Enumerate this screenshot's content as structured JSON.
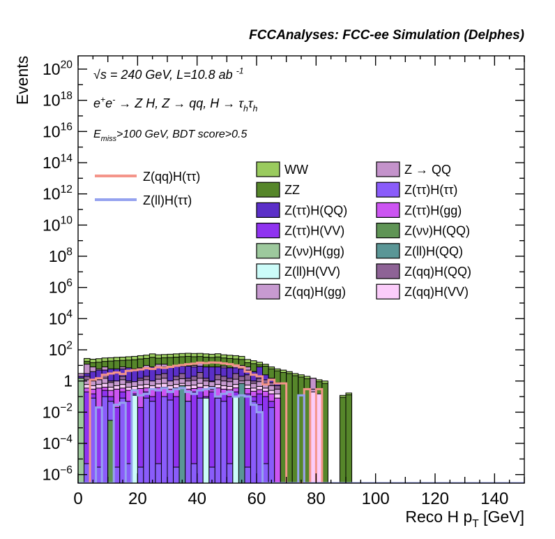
{
  "header": {
    "title": "FCCAnalyses: FCC-ee Simulation (Delphes)"
  },
  "annotations": [
    {
      "id": "annotation-energy-lumi",
      "segments": [
        {
          "t": "√s = 240 GeV, L=10.8 ab ",
          "k": "n"
        },
        {
          "t": "-1",
          "k": "sup"
        }
      ]
    },
    {
      "id": "annotation-process",
      "segments": [
        {
          "t": "e",
          "k": "n"
        },
        {
          "t": "+",
          "k": "sup"
        },
        {
          "t": "e",
          "k": "n"
        },
        {
          "t": "-",
          "k": "sup"
        },
        {
          "t": " → Z H, Z  → qq, H  → τ",
          "k": "n"
        },
        {
          "t": "h",
          "k": "sub"
        },
        {
          "t": "τ",
          "k": "n"
        },
        {
          "t": "h",
          "k": "sub"
        }
      ]
    },
    {
      "id": "annotation-selection",
      "segments": [
        {
          "t": "E",
          "k": "n"
        },
        {
          "t": "miss",
          "k": "sub"
        },
        {
          "t": ">100 GeV, BDT score>0.5",
          "k": "n"
        }
      ]
    }
  ],
  "signal_legend": [
    {
      "id": "sig-zqq-htautau",
      "label": "Z(qq)H(ττ)",
      "color": "#f4958a"
    },
    {
      "id": "sig-zll-htautau",
      "label": "Z(ll)H(ττ)",
      "color": "#95a2ef"
    }
  ],
  "legend": {
    "columns": [
      [
        {
          "id": "ww",
          "label": "WW",
          "color": "#9acb5e"
        },
        {
          "id": "zz",
          "label": "ZZ",
          "color": "#56862a"
        },
        {
          "id": "ztt-hqq",
          "label": "Z(ττ)H(QQ)",
          "color": "#5b2fc8"
        },
        {
          "id": "ztt-hvv",
          "label": "Z(ττ)H(VV)",
          "color": "#8f33f0"
        },
        {
          "id": "znn-hgg",
          "label": "Z(νν)H(gg)",
          "color": "#9dc99d"
        },
        {
          "id": "zll-hvv",
          "label": "Z(ll)H(VV)",
          "color": "#ccfcf9"
        },
        {
          "id": "zqq-hgg",
          "label": "Z(qq)H(gg)",
          "color": "#c79ad0"
        }
      ],
      [
        {
          "id": "z-to-qq",
          "label": "Z → QQ",
          "color": "#c493cb"
        },
        {
          "id": "ztt-htt",
          "label": "Z(ττ)H(ττ)",
          "color": "#8a5cfa"
        },
        {
          "id": "ztt-hgg",
          "label": "Z(ττ)H(gg)",
          "color": "#cc55f2"
        },
        {
          "id": "znn-hqq",
          "label": "Z(νν)H(QQ)",
          "color": "#5f9455"
        },
        {
          "id": "zll-hqq",
          "label": "Z(ll)H(QQ)",
          "color": "#5a9696"
        },
        {
          "id": "zqq-hqq",
          "label": "Z(qq)H(QQ)",
          "color": "#8e6396"
        },
        {
          "id": "zqq-hvv",
          "label": "Z(qq)H(VV)",
          "color": "#fbccfa"
        }
      ]
    ]
  },
  "axes": {
    "x": {
      "title_segments": [
        {
          "t": "Reco H p",
          "k": "n"
        },
        {
          "t": "T",
          "k": "sub"
        },
        {
          "t": " [GeV]",
          "k": "n"
        }
      ],
      "min": 0,
      "max": 150,
      "major_step": 20,
      "mid_step": 10,
      "minor_step": 5,
      "labels": [
        "0",
        "20",
        "40",
        "60",
        "80",
        "100",
        "120",
        "140"
      ]
    },
    "y": {
      "title": "Events",
      "log": true,
      "exp_min": -6,
      "exp_max": 20,
      "ticks": [
        {
          "exp": -6,
          "base": "10",
          "sup": "−6"
        },
        {
          "exp": -4,
          "base": "10",
          "sup": "−4"
        },
        {
          "exp": -2,
          "base": "10",
          "sup": "−2"
        },
        {
          "exp": 0,
          "base": "1",
          "sup": ""
        },
        {
          "exp": 2,
          "base": "10",
          "sup": "2"
        },
        {
          "exp": 4,
          "base": "10",
          "sup": "4"
        },
        {
          "exp": 6,
          "base": "10",
          "sup": "6"
        },
        {
          "exp": 8,
          "base": "10",
          "sup": "8"
        },
        {
          "exp": 10,
          "base": "10",
          "sup": "10"
        },
        {
          "exp": 12,
          "base": "10",
          "sup": "12"
        },
        {
          "exp": 14,
          "base": "10",
          "sup": "14"
        },
        {
          "exp": 16,
          "base": "10",
          "sup": "16"
        },
        {
          "exp": 18,
          "base": "10",
          "sup": "18"
        },
        {
          "exp": 20,
          "base": "10",
          "sup": "20"
        }
      ]
    }
  },
  "chart_data": {
    "type": "bar",
    "subtype": "stacked-histogram-log-y",
    "title": "FCCAnalyses: FCC-ee Simulation (Delphes)",
    "xlabel": "Reco H pT [GeV]",
    "ylabel": "Events",
    "xlim": [
      0,
      150
    ],
    "ylim_exponents": [
      -6.55,
      20.85
    ],
    "grid": false,
    "legend_position": "top-center-inside",
    "bin_width": 2,
    "x_start": 0,
    "series_note": "cumulative stack-top values per 2 GeV bin, painted outer(first) to inner(last); 0 = empty bin",
    "series": [
      {
        "id": "ww",
        "name": "WW",
        "color": "#9acb5e",
        "tops": [
          3,
          28,
          25,
          27,
          30,
          31,
          33,
          34,
          36,
          38,
          42,
          46,
          55,
          48,
          50,
          52,
          55,
          58,
          60,
          58,
          59,
          55,
          52,
          56,
          48,
          45,
          42,
          38,
          24,
          20,
          16,
          12,
          8,
          6,
          5,
          4,
          3,
          2.5,
          2,
          1.5,
          1.2,
          1,
          0,
          0,
          0.12,
          0.17,
          0
        ]
      },
      {
        "id": "zz",
        "name": "ZZ",
        "color": "#56862a",
        "tops": [
          2.5,
          18,
          15,
          16,
          18,
          19,
          20,
          21,
          22,
          23,
          26,
          28,
          33,
          29,
          31,
          32,
          34,
          36,
          38,
          36,
          37,
          34,
          32,
          35,
          30,
          28,
          26,
          24,
          15,
          13,
          11,
          9,
          6,
          4.5,
          3.5,
          3,
          2.2,
          1.8,
          1.4,
          1.1,
          0.9,
          0.7,
          0,
          0,
          0.09,
          0.13,
          0
        ]
      },
      {
        "id": "z-to-qq",
        "name": "Z → QQ",
        "color": "#c493cb",
        "tops": [
          3,
          12,
          8,
          6,
          8,
          4,
          3,
          8,
          5,
          4,
          6,
          10,
          7,
          12,
          12,
          6,
          8,
          9,
          7,
          10,
          14,
          8,
          6,
          8,
          9,
          7,
          10,
          10,
          8,
          4,
          3,
          2,
          0,
          0,
          0,
          0,
          0,
          0,
          0,
          1.5,
          0,
          0,
          0,
          0,
          0,
          0,
          0
        ]
      },
      {
        "id": "ztt-hqq",
        "name": "Z(ττ)H(QQ)",
        "color": "#5b2fc8",
        "tops": [
          2,
          3,
          4,
          5,
          5,
          6,
          6,
          6,
          7,
          6,
          7,
          7,
          8,
          7,
          8,
          8,
          9,
          9,
          9,
          8,
          9,
          8,
          8,
          8,
          7,
          7,
          7,
          6,
          5,
          4,
          8,
          2.5,
          1.5,
          0.8,
          0,
          0,
          0,
          0,
          0,
          0,
          0,
          0,
          0,
          0,
          0,
          0,
          0
        ]
      },
      {
        "id": "zqq-hqq",
        "name": "Z(qq)H(QQ)",
        "color": "#8e6396",
        "tops": [
          1.5,
          2,
          0.8,
          0.6,
          2.5,
          1,
          0.7,
          2,
          1,
          0.8,
          1.5,
          2,
          1,
          2.5,
          3,
          1,
          2,
          3,
          1.5,
          2,
          3.5,
          1.5,
          1,
          2.5,
          2,
          1.5,
          3,
          2,
          2.5,
          1,
          1.5,
          1.2,
          0.8,
          0.5,
          0,
          0,
          0,
          0,
          0,
          0,
          0,
          0,
          0,
          0,
          0,
          0,
          0
        ]
      },
      {
        "id": "zqq-hgg",
        "name": "Z(qq)H(gg)",
        "color": "#c79ad0",
        "tops": [
          0.9,
          1.2,
          1,
          1.2,
          1.5,
          0.8,
          1,
          1.2,
          0.8,
          0.9,
          1.1,
          1.2,
          1,
          1.3,
          1.5,
          1,
          1.2,
          1.4,
          1,
          1.1,
          1.5,
          1,
          0.9,
          1.2,
          1,
          0.9,
          1.3,
          1,
          1.1,
          0.7,
          0.9,
          0.7,
          0.5,
          0.3,
          0,
          0,
          0,
          0,
          0,
          0.3,
          0,
          0,
          0,
          0,
          0,
          0,
          0
        ]
      },
      {
        "id": "zqq-hvv",
        "name": "Z(qq)H(VV)",
        "color": "#fbccfa",
        "tops": [
          0.45,
          0.6,
          0.5,
          0.6,
          0.7,
          0.4,
          0.5,
          0.6,
          0.4,
          0.45,
          0.55,
          0.6,
          0.5,
          0.65,
          0.7,
          0.5,
          0.6,
          0.7,
          0.5,
          0.55,
          0.7,
          0.5,
          0.45,
          0.6,
          0.5,
          0.45,
          0.6,
          0.5,
          0.55,
          0.35,
          0.45,
          0.35,
          0.25,
          0.15,
          0,
          0,
          0,
          0,
          0,
          0.2,
          0.15,
          0,
          0,
          0,
          0,
          0,
          0
        ]
      },
      {
        "id": "ztt-hgg",
        "name": "Z(ττ)H(gg)",
        "color": "#cc55f2",
        "tops": [
          0.3,
          0.35,
          0.3,
          0.35,
          0.4,
          0.25,
          0.3,
          0.35,
          0.25,
          0.28,
          0.33,
          0.36,
          0.3,
          0.38,
          0.4,
          0.3,
          0.36,
          0.4,
          0.3,
          0.33,
          0.4,
          0.3,
          0.28,
          0.36,
          0.3,
          0.28,
          0.36,
          0.3,
          0.33,
          0.22,
          0.28,
          0.22,
          0.15,
          0.08,
          0,
          0,
          0,
          0,
          0,
          0,
          0,
          0,
          0,
          0,
          0,
          0,
          0
        ]
      },
      {
        "id": "ztt-hvv",
        "name": "Z(ττ)H(VV)",
        "color": "#8f33f0",
        "tops": [
          0.1,
          0.2,
          0.15,
          0.02,
          0.25,
          0.1,
          0.02,
          0.2,
          0.05,
          0.15,
          0.02,
          0.2,
          0.1,
          0.25,
          0.05,
          0.2,
          0.1,
          0.25,
          0.05,
          0.2,
          0.25,
          0.1,
          0.2,
          0.05,
          0.15,
          0.1,
          0.2,
          0.05,
          0.15,
          0.1,
          0.15,
          0.1,
          0.05,
          0,
          0,
          0,
          0,
          0,
          0,
          0,
          0,
          0,
          0,
          0,
          0,
          0,
          0
        ]
      },
      {
        "id": "ztt-htt",
        "name": "Z(ττ)H(ττ)",
        "color": "#8a5cfa",
        "tops": [
          0,
          5e-06,
          0.08,
          3e-06,
          0.1,
          0.05,
          3e-06,
          0.08,
          5e-06,
          0.06,
          3e-06,
          0.08,
          0.05,
          5e-06,
          0.1,
          0.06,
          3e-06,
          0.08,
          0.05,
          5e-06,
          0.08,
          0.06,
          3e-06,
          0.08,
          0.05,
          5e-06,
          0.06,
          0.04,
          3e-06,
          0.05,
          0.03,
          5e-06,
          0.02,
          0,
          0,
          0,
          0,
          0,
          0,
          0,
          0,
          0,
          0,
          0,
          0,
          0,
          0
        ]
      },
      {
        "id": "zll-hvv",
        "name": "Z(ll)H(VV)",
        "color": "#ccfcf9",
        "tops": [
          0,
          0,
          0,
          0,
          0,
          0,
          0,
          0,
          0,
          0.12,
          0,
          0,
          0,
          0,
          0,
          0,
          0,
          0,
          0,
          0,
          0,
          0.08,
          0,
          0,
          0,
          0,
          0.1,
          0,
          0,
          0,
          0,
          0,
          0,
          0,
          0,
          0,
          0,
          0,
          0,
          0,
          0,
          0,
          0,
          0,
          0,
          0,
          0
        ]
      },
      {
        "id": "zll-hqq",
        "name": "Z(ll)H(QQ)",
        "color": "#5a9696",
        "tops": [
          0,
          0,
          0,
          0,
          0,
          0,
          0,
          0,
          0,
          0,
          0,
          0,
          0,
          0,
          0,
          0,
          0,
          0.5,
          0,
          0,
          0,
          0,
          0,
          0,
          0,
          0,
          0,
          0.7,
          0,
          0,
          0,
          0,
          0,
          0,
          0,
          0,
          0,
          0,
          0,
          0,
          0,
          0,
          0,
          0,
          0,
          0,
          0
        ]
      },
      {
        "id": "znn-hqq",
        "name": "Z(νν)H(QQ)",
        "color": "#5f9455",
        "tops": [
          0,
          0,
          0,
          0,
          0,
          0.003,
          0,
          0,
          0,
          0,
          0,
          0,
          0,
          0,
          0,
          0,
          0,
          0,
          0,
          0,
          0,
          0,
          0,
          0,
          0,
          0,
          0,
          0,
          0,
          0,
          0,
          0,
          0,
          0,
          0,
          0,
          0,
          0,
          0,
          0,
          0,
          0,
          0,
          0,
          0,
          0,
          0
        ]
      },
      {
        "id": "znn-hgg",
        "name": "Z(νν)H(gg)",
        "color": "#9dc99d",
        "tops": [
          1.5,
          0,
          0,
          0,
          0,
          0,
          0,
          0,
          0,
          0,
          0,
          0,
          0,
          0,
          0,
          0,
          0,
          0,
          0,
          0,
          0,
          0,
          0,
          0,
          0,
          0,
          0,
          0,
          0,
          0,
          0,
          0,
          0,
          0,
          0,
          0,
          0,
          0,
          0,
          0,
          0,
          0,
          0,
          0,
          0,
          0,
          0
        ]
      }
    ],
    "overlays": [
      {
        "id": "sig-zqq-htautau",
        "name": "Z(qq)H(ττ)",
        "color": "#f4958a",
        "x_begin": 4,
        "values": [
          0,
          0,
          1.2,
          1.5,
          2.5,
          3,
          3.5,
          2.8,
          4.5,
          5,
          5.5,
          6.5,
          6,
          7.5,
          7,
          8,
          9.5,
          10.5,
          12,
          13,
          15,
          14,
          15.5,
          15,
          13.5,
          12,
          10,
          7.5,
          4,
          2.5,
          2,
          0.6,
          1.2,
          0.7,
          0.7,
          0,
          0,
          0,
          0.3,
          0,
          0.3,
          0,
          0,
          0,
          0,
          0,
          0
        ]
      },
      {
        "id": "sig-zll-htautau",
        "name": "Z(ll)H(ττ)",
        "color": "#95a2ef",
        "x_begin": 0,
        "values": [
          0,
          0,
          0,
          0.02,
          0,
          0,
          0.03,
          0.04,
          0,
          0.25,
          0.12,
          0.15,
          0.3,
          0.25,
          0.35,
          0.2,
          0.3,
          0.35,
          0.2,
          0.15,
          0.25,
          0.3,
          0.35,
          0.1,
          0.15,
          0.2,
          0.1,
          0.12,
          0.1,
          0.03,
          0.01,
          0,
          0,
          0,
          0,
          0,
          0,
          0.12,
          0,
          0,
          0,
          0,
          0,
          0,
          0,
          0,
          0
        ]
      }
    ]
  },
  "colors": {
    "axis": "#000000",
    "background": "#ffffff",
    "frame": "#000000"
  }
}
